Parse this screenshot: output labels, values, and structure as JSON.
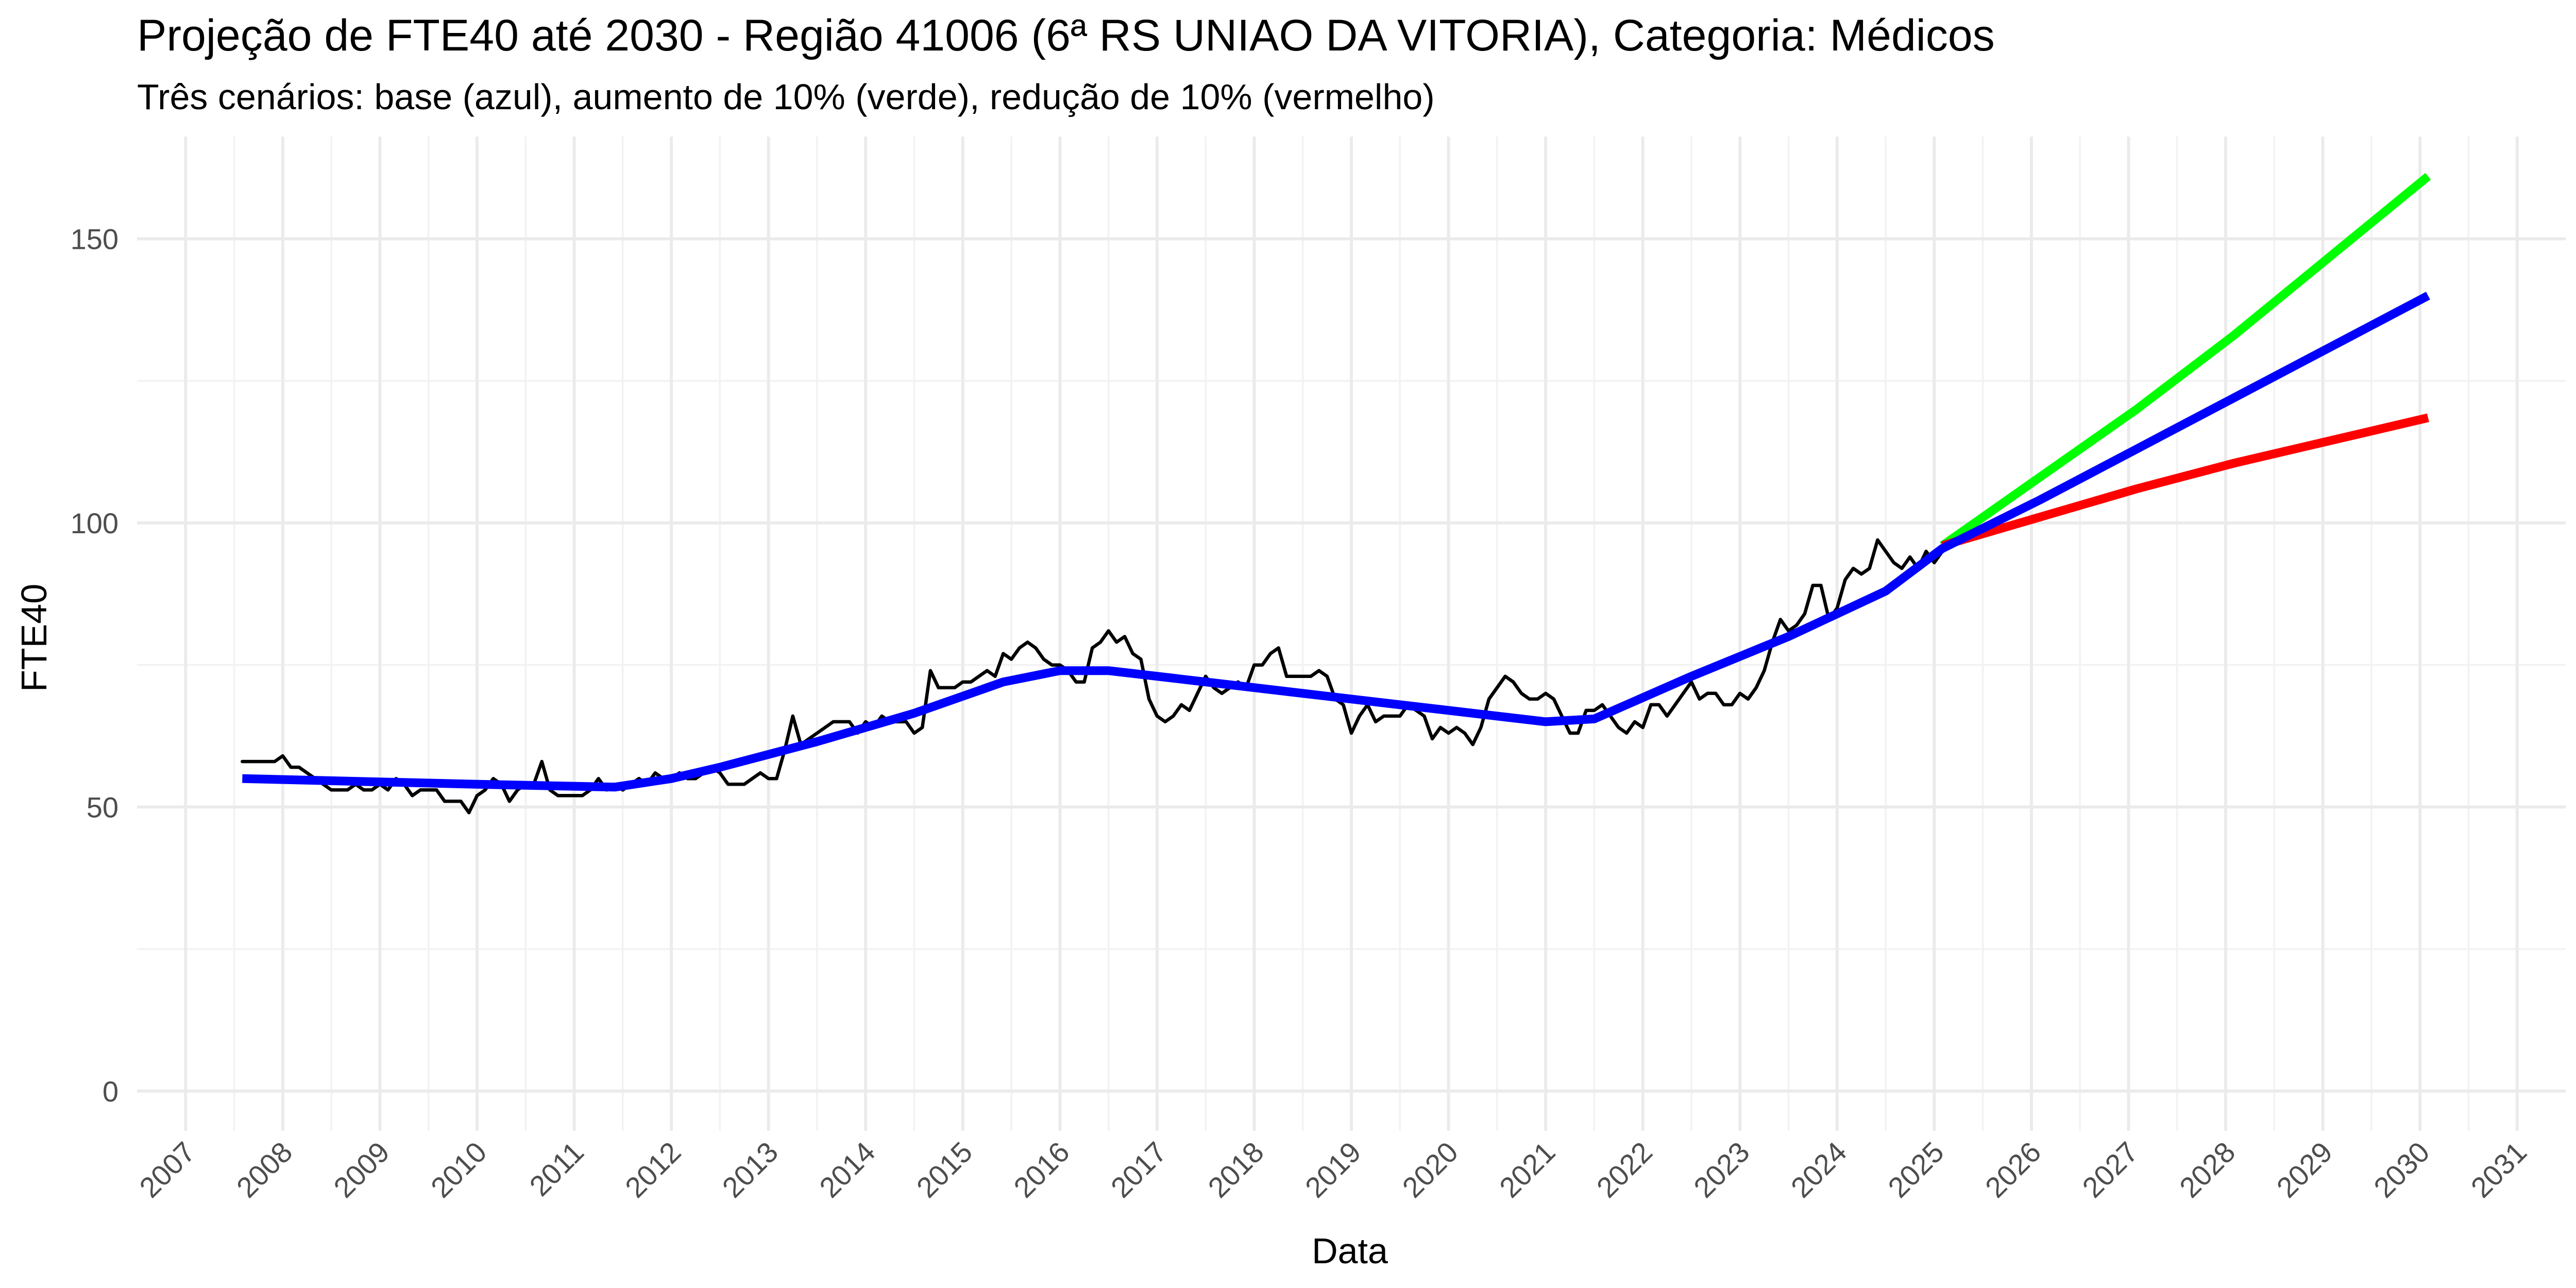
{
  "chart_data": {
    "type": "line",
    "title": "Projeção de FTE40 até 2030 - Região 41006 (6ª RS UNIAO DA VITORIA), Categoria: Médicos",
    "subtitle": "Três cenários: base (azul), aumento de 10% (verde), redução de 10% (vermelho)",
    "xlabel": "Data",
    "ylabel": "FTE40",
    "x_type": "date",
    "xlim": [
      "2006-07-01",
      "2031-07-01"
    ],
    "ylim": [
      -7,
      168
    ],
    "x_ticks": [
      "2007",
      "2008",
      "2009",
      "2010",
      "2011",
      "2012",
      "2013",
      "2014",
      "2015",
      "2016",
      "2017",
      "2018",
      "2019",
      "2020",
      "2021",
      "2022",
      "2023",
      "2024",
      "2025",
      "2026",
      "2027",
      "2028",
      "2029",
      "2030",
      "2031"
    ],
    "y_ticks": [
      0,
      50,
      100,
      150
    ],
    "grid": true,
    "legend": "none",
    "observed": {
      "color": "#000000",
      "start": "2007-08",
      "values": [
        58,
        58,
        58,
        58,
        58,
        59,
        57,
        57,
        56,
        55,
        54,
        53,
        53,
        53,
        54,
        53,
        53,
        54,
        53,
        55,
        54,
        52,
        53,
        53,
        53,
        51,
        51,
        51,
        49,
        52,
        53,
        55,
        54,
        51,
        53,
        54,
        54,
        58,
        53,
        52,
        52,
        52,
        52,
        53,
        55,
        53,
        54,
        53,
        54,
        55,
        54,
        56,
        55,
        55,
        56,
        55,
        55,
        56,
        57,
        56,
        54,
        54,
        54,
        55,
        56,
        55,
        55,
        60,
        66,
        61,
        62,
        63,
        64,
        65,
        65,
        65,
        63,
        65,
        64,
        66,
        65,
        65,
        65,
        63,
        64,
        74,
        71,
        71,
        71,
        72,
        72,
        73,
        74,
        73,
        77,
        76,
        78,
        79,
        78,
        76,
        75,
        75,
        74,
        72,
        72,
        78,
        79,
        81,
        79,
        80,
        77,
        76,
        69,
        66,
        65,
        66,
        68,
        67,
        70,
        73,
        71,
        70,
        71,
        72,
        71,
        75,
        75,
        77,
        78,
        73,
        73,
        73,
        73,
        74,
        73,
        69,
        68,
        63,
        66,
        68,
        65,
        66,
        66,
        66,
        68,
        67,
        66,
        62,
        64,
        63,
        64,
        63,
        61,
        64,
        69,
        71,
        73,
        72,
        70,
        69,
        69,
        70,
        69,
        66,
        63,
        63,
        67,
        67,
        68,
        66,
        64,
        63,
        65,
        64,
        68,
        68,
        66,
        68,
        70,
        72,
        69,
        70,
        70,
        68,
        68,
        70,
        69,
        71,
        74,
        79,
        83,
        81,
        82,
        84,
        89,
        89,
        83,
        85,
        90,
        92,
        91,
        92,
        97,
        95,
        93,
        92,
        94,
        92,
        95,
        93,
        95,
        96,
        98,
        98
      ]
    },
    "series": [
      {
        "name": "base",
        "color": "#0000ff",
        "x": [
          "2007-08",
          "2010-01",
          "2011-06",
          "2012-01",
          "2012-07",
          "2013-07",
          "2014-07",
          "2015-06",
          "2016-01",
          "2016-07",
          "2017-07",
          "2018-07",
          "2019-07",
          "2020-07",
          "2021-01",
          "2021-07",
          "2022-07",
          "2023-07",
          "2024-07",
          "2025-02",
          "2026-02",
          "2027-02",
          "2028-02",
          "2029-02",
          "2030-02"
        ],
        "values": [
          55,
          54,
          53.5,
          55,
          57,
          61.5,
          66.5,
          72,
          74,
          74,
          72,
          70,
          68,
          66,
          65,
          65.5,
          73,
          80,
          88,
          95.5,
          104,
          113,
          122,
          131,
          140
        ]
      },
      {
        "name": "aumento de 10%",
        "color": "#00ff00",
        "x": [
          "2025-02",
          "2026-02",
          "2027-02",
          "2028-02",
          "2029-02",
          "2030-02"
        ],
        "values": [
          96,
          108,
          120,
          133,
          147,
          161
        ]
      },
      {
        "name": "redução de 10%",
        "color": "#ff0000",
        "x": [
          "2025-02",
          "2026-02",
          "2027-02",
          "2028-02",
          "2029-02",
          "2030-02"
        ],
        "values": [
          96,
          101,
          106,
          110.5,
          114.5,
          118.5
        ]
      }
    ]
  }
}
